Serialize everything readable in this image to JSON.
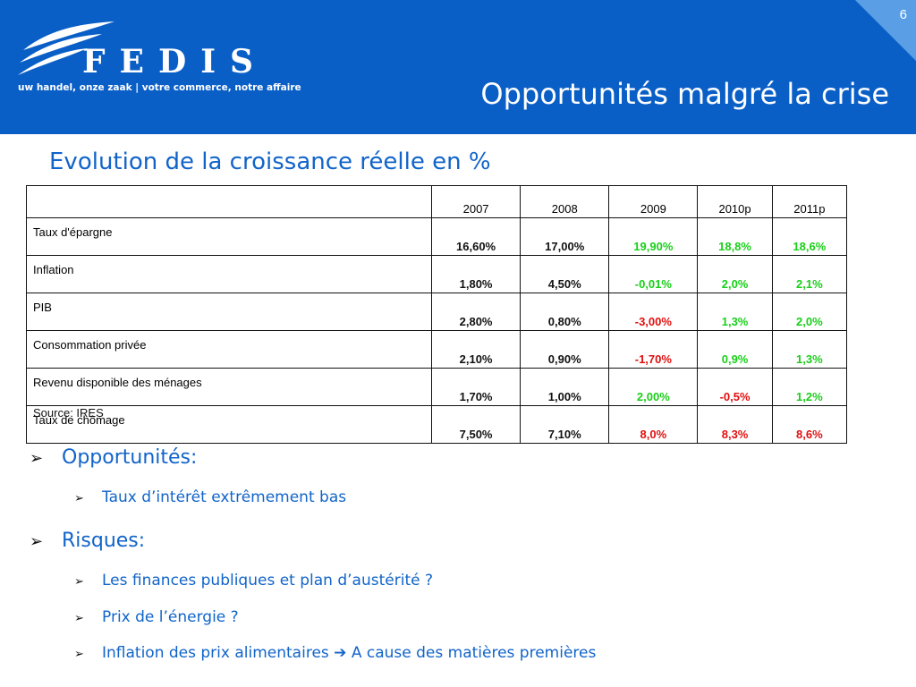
{
  "header": {
    "logo_text": "FEDIS",
    "tagline": "uw handel, onze zaak  |  votre commerce, notre affaire",
    "slide_number": "6",
    "title": "Opportunités malgré la crise"
  },
  "subtitle": "Evolution de la croissance réelle en %",
  "table": {
    "columns": [
      "2007",
      "2008",
      "2009",
      "2010p",
      "2011p"
    ],
    "rows": [
      {
        "label": "Taux d'épargne",
        "values": [
          "16,60%",
          "17,00%",
          "19,90%",
          "18,8%",
          "18,6%"
        ],
        "colors": [
          "black",
          "black",
          "green",
          "green",
          "green"
        ]
      },
      {
        "label": "Inflation",
        "values": [
          "1,80%",
          "4,50%",
          "-0,01%",
          "2,0%",
          "2,1%"
        ],
        "colors": [
          "black",
          "black",
          "green",
          "green",
          "green"
        ]
      },
      {
        "label": "PIB",
        "values": [
          "2,80%",
          "0,80%",
          "-3,00%",
          "1,3%",
          "2,0%"
        ],
        "colors": [
          "black",
          "black",
          "red",
          "green",
          "green"
        ]
      },
      {
        "label": "Consommation privée",
        "values": [
          "2,10%",
          "0,90%",
          "-1,70%",
          "0,9%",
          "1,3%"
        ],
        "colors": [
          "black",
          "black",
          "red",
          "green",
          "green"
        ]
      },
      {
        "label": "Revenu disponible des ménages",
        "values": [
          "1,70%",
          "1,00%",
          "2,00%",
          "-0,5%",
          "1,2%"
        ],
        "colors": [
          "black",
          "black",
          "green",
          "red",
          "green"
        ]
      },
      {
        "label": "Taux de chômage",
        "values": [
          "7,50%",
          "7,10%",
          "8,0%",
          "8,3%",
          "8,6%"
        ],
        "colors": [
          "black",
          "black",
          "red",
          "red",
          "red"
        ]
      }
    ],
    "source": "Source: IRES"
  },
  "bullets": {
    "opportunites": "Opportunités:",
    "taux": "Taux d’intérêt extrêmement bas",
    "risques": "Risques:",
    "finances": "Les finances publiques et plan d’austérité ?",
    "energie": "Prix de l’énergie ?",
    "inflation_a": "Inflation des prix alimentaires",
    "inflation_b": "A cause des matières premières"
  },
  "colors": {
    "header_blue": "#0a5fc7",
    "text_blue": "#1164c9",
    "green": "#19cf19",
    "red": "#e01010"
  }
}
